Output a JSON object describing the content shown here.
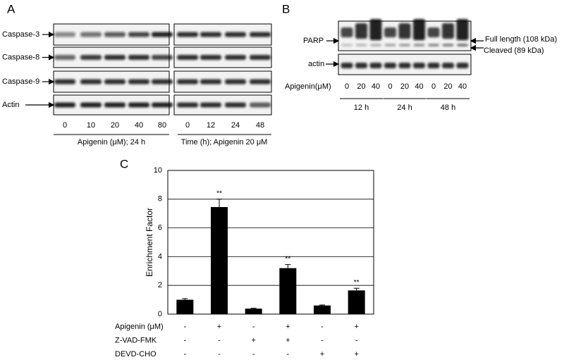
{
  "panel_a": {
    "label": "A",
    "rows": [
      "Caspase-3",
      "Caspase-8",
      "Caspase-9",
      "Actin"
    ],
    "lanes_left": [
      "0",
      "10",
      "20",
      "40",
      "80"
    ],
    "caption_left": "Apigenin (μM); 24 h",
    "lanes_right": [
      "0",
      "12",
      "24",
      "48"
    ],
    "caption_right": "Time (h); Apigenin 20 μM"
  },
  "panel_b": {
    "label": "B",
    "rows": [
      "PARP",
      "actin"
    ],
    "bands": [
      "Full length (108 kDa)",
      "Cleaved (89 kDa)"
    ],
    "lane_label": "Apigenin(μM)",
    "lanes": [
      "0",
      "20",
      "40",
      "0",
      "20",
      "40",
      "0",
      "20",
      "40"
    ],
    "groups": [
      "12 h",
      "24 h",
      "48 h"
    ]
  },
  "chart_data": {
    "type": "bar",
    "label": "C",
    "ylabel": "Enrichment Factor",
    "values": [
      1.0,
      7.45,
      0.38,
      3.2,
      0.6,
      1.65
    ],
    "errors": [
      0.08,
      0.55,
      0.03,
      0.25,
      0.04,
      0.15
    ],
    "value_annotations": [
      null,
      "**",
      null,
      "**",
      null,
      "**"
    ],
    "color": "#000000",
    "ylim": [
      0,
      10
    ],
    "yticks": [
      0,
      2,
      4,
      6,
      8,
      10
    ],
    "grid": true,
    "treatments": [
      {
        "name": "Apigenin (μM)",
        "signs": [
          "-",
          "+",
          "-",
          "+",
          "-",
          "+"
        ]
      },
      {
        "name": "Z-VAD-FMK",
        "signs": [
          "-",
          "-",
          "+",
          "+",
          "-",
          "-"
        ]
      },
      {
        "name": "DEVD-CHO",
        "signs": [
          "-",
          "-",
          "-",
          "-",
          "+",
          "+"
        ]
      }
    ]
  }
}
